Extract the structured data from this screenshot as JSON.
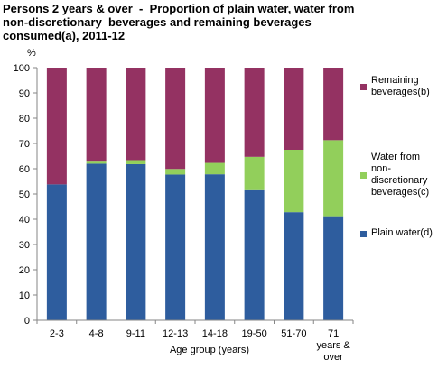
{
  "title_lines": [
    "Persons 2 years & over  -  Proportion of plain water, water from",
    "non-discretionary  beverages and remaining beverages",
    "consumed(a), 2011-12"
  ],
  "chart_data": {
    "type": "bar",
    "stacked": true,
    "title": "Persons 2 years & over  -  Proportion of plain water, water from non-discretionary  beverages and remaining beverages consumed(a), 2011-12",
    "xlabel": "Age group (years)",
    "ylabel": "%",
    "ylim": [
      0,
      100
    ],
    "yticks": [
      0,
      10,
      20,
      30,
      40,
      50,
      60,
      70,
      80,
      90,
      100
    ],
    "categories": [
      "2-3",
      "4-8",
      "9-11",
      "12-13",
      "14-18",
      "19-50",
      "51-70",
      "71 years & over"
    ],
    "category_label_lines": [
      [
        "2-3"
      ],
      [
        "4-8"
      ],
      [
        "9-11"
      ],
      [
        "12-13"
      ],
      [
        "14-18"
      ],
      [
        "19-50"
      ],
      [
        "51-70"
      ],
      [
        "71",
        "years &",
        "over"
      ]
    ],
    "series": [
      {
        "name": "Plain water(d)",
        "label_lines": [
          "Plain water(d)"
        ],
        "color": "#2e5d9e",
        "values": [
          53.8,
          62.0,
          61.8,
          57.7,
          57.8,
          51.5,
          42.8,
          41.2
        ]
      },
      {
        "name": "Water from non-discretionary beverages(c)",
        "label_lines": [
          "Water from",
          "non-",
          "discretionary",
          "beverages(c)"
        ],
        "color": "#92cf5b",
        "values": [
          0.0,
          0.8,
          1.6,
          2.2,
          4.5,
          13.2,
          24.7,
          30.1
        ]
      },
      {
        "name": "Remaining beverages(b)",
        "label_lines": [
          "Remaining",
          "beverages(b)"
        ],
        "color": "#943262",
        "values": [
          46.2,
          37.2,
          36.6,
          40.1,
          37.7,
          35.3,
          32.5,
          28.7
        ]
      }
    ],
    "legend_position": "right",
    "grid": false
  }
}
